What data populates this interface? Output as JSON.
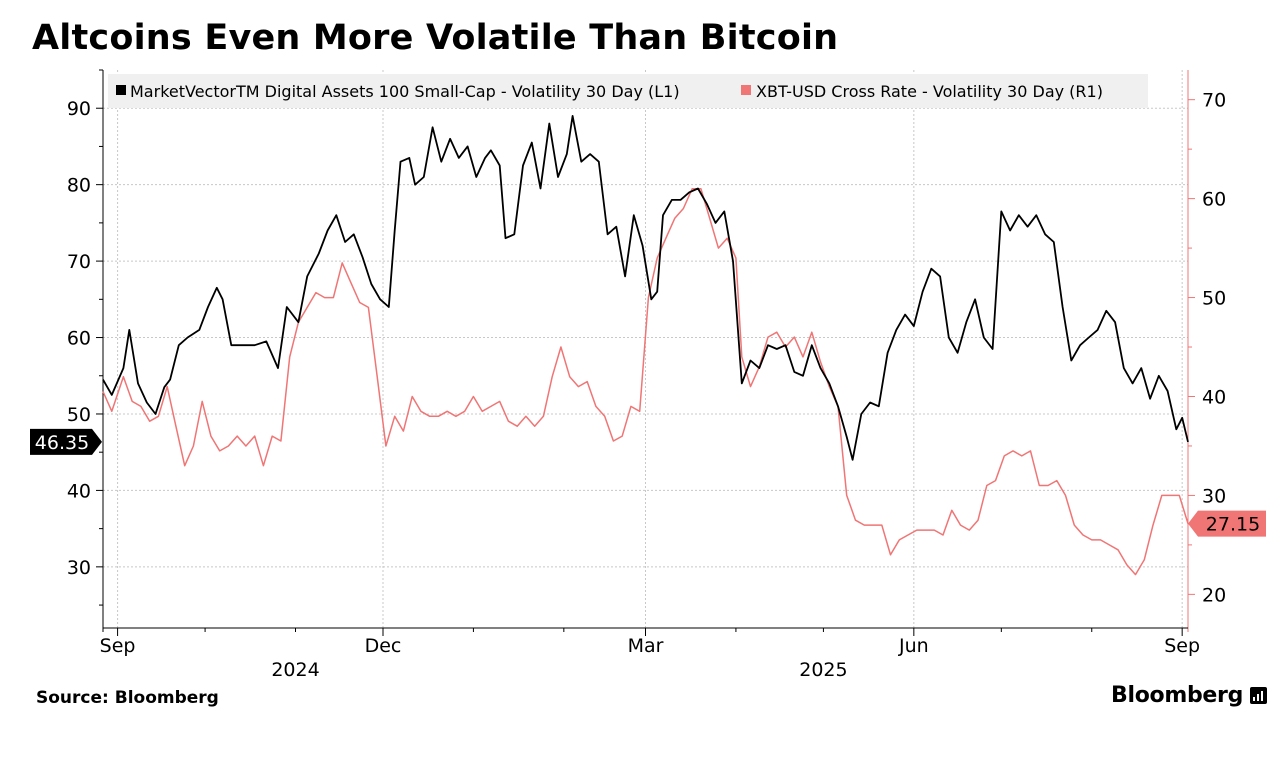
{
  "title": "Altcoins Even More Volatile Than Bitcoin",
  "source": "Source: Bloomberg",
  "brand": "Bloomberg",
  "chart_data": {
    "type": "line",
    "title": "Altcoins Even More Volatile Than Bitcoin",
    "x_ticks": [
      "Sep",
      "Dec",
      "Mar",
      "Jun",
      "Sep"
    ],
    "x_years": [
      "2024",
      "2025"
    ],
    "x_range": [
      "2024-08-27",
      "2025-09-03"
    ],
    "grid": true,
    "legend_position": "top",
    "axes": {
      "left": {
        "ticks": [
          30,
          40,
          50,
          60,
          70,
          80,
          90
        ],
        "range": [
          22,
          95
        ]
      },
      "right": {
        "ticks": [
          20,
          30,
          40,
          50,
          60,
          70
        ],
        "range": [
          16.6,
          73
        ]
      }
    },
    "series": [
      {
        "name": "MarketVectorTM Digital Assets 100 Small-Cap - Volatility 30 Day (L1)",
        "axis": "left",
        "color": "#000000",
        "last_label": "46.35",
        "points": [
          [
            "2024-08-27",
            54.5
          ],
          [
            "2024-08-30",
            52.5
          ],
          [
            "2024-09-03",
            56.0
          ],
          [
            "2024-09-05",
            61.0
          ],
          [
            "2024-09-08",
            54.0
          ],
          [
            "2024-09-11",
            51.5
          ],
          [
            "2024-09-14",
            50.0
          ],
          [
            "2024-09-17",
            53.5
          ],
          [
            "2024-09-19",
            54.5
          ],
          [
            "2024-09-22",
            59.0
          ],
          [
            "2024-09-25",
            60.0
          ],
          [
            "2024-09-29",
            61.0
          ],
          [
            "2024-10-02",
            64.0
          ],
          [
            "2024-10-05",
            66.5
          ],
          [
            "2024-10-07",
            65.0
          ],
          [
            "2024-10-10",
            59.0
          ],
          [
            "2024-10-14",
            59.0
          ],
          [
            "2024-10-18",
            59.0
          ],
          [
            "2024-10-22",
            59.5
          ],
          [
            "2024-10-26",
            56.0
          ],
          [
            "2024-10-29",
            64.0
          ],
          [
            "2024-11-02",
            62.0
          ],
          [
            "2024-11-05",
            68.0
          ],
          [
            "2024-11-09",
            71.0
          ],
          [
            "2024-11-12",
            74.0
          ],
          [
            "2024-11-15",
            76.0
          ],
          [
            "2024-11-18",
            72.5
          ],
          [
            "2024-11-21",
            73.5
          ],
          [
            "2024-11-24",
            70.5
          ],
          [
            "2024-11-27",
            67.0
          ],
          [
            "2024-11-30",
            65.0
          ],
          [
            "2024-12-03",
            64.0
          ],
          [
            "2024-12-05",
            74.0
          ],
          [
            "2024-12-07",
            83.0
          ],
          [
            "2024-12-10",
            83.5
          ],
          [
            "2024-12-12",
            80.0
          ],
          [
            "2024-12-15",
            81.0
          ],
          [
            "2024-12-18",
            87.5
          ],
          [
            "2024-12-21",
            83.0
          ],
          [
            "2024-12-24",
            86.0
          ],
          [
            "2024-12-27",
            83.5
          ],
          [
            "2024-12-30",
            85.0
          ],
          [
            "2025-01-02",
            81.0
          ],
          [
            "2025-01-05",
            83.5
          ],
          [
            "2025-01-07",
            84.5
          ],
          [
            "2025-01-10",
            82.5
          ],
          [
            "2025-01-12",
            73.0
          ],
          [
            "2025-01-15",
            73.5
          ],
          [
            "2025-01-18",
            82.5
          ],
          [
            "2025-01-21",
            85.5
          ],
          [
            "2025-01-24",
            79.5
          ],
          [
            "2025-01-27",
            88.0
          ],
          [
            "2025-01-30",
            81.0
          ],
          [
            "2025-02-02",
            84.0
          ],
          [
            "2025-02-04",
            89.0
          ],
          [
            "2025-02-07",
            83.0
          ],
          [
            "2025-02-10",
            84.0
          ],
          [
            "2025-02-13",
            83.0
          ],
          [
            "2025-02-16",
            73.5
          ],
          [
            "2025-02-19",
            74.5
          ],
          [
            "2025-02-22",
            68.0
          ],
          [
            "2025-02-25",
            76.0
          ],
          [
            "2025-02-28",
            72.0
          ],
          [
            "2025-03-03",
            65.0
          ],
          [
            "2025-03-05",
            66.0
          ],
          [
            "2025-03-07",
            76.0
          ],
          [
            "2025-03-10",
            78.0
          ],
          [
            "2025-03-13",
            78.0
          ],
          [
            "2025-03-16",
            79.0
          ],
          [
            "2025-03-19",
            79.5
          ],
          [
            "2025-03-22",
            77.5
          ],
          [
            "2025-03-25",
            75.0
          ],
          [
            "2025-03-28",
            76.5
          ],
          [
            "2025-03-31",
            70.0
          ],
          [
            "2025-04-03",
            54.0
          ],
          [
            "2025-04-06",
            57.0
          ],
          [
            "2025-04-09",
            56.0
          ],
          [
            "2025-04-12",
            59.0
          ],
          [
            "2025-04-15",
            58.5
          ],
          [
            "2025-04-18",
            59.0
          ],
          [
            "2025-04-21",
            55.5
          ],
          [
            "2025-04-24",
            55.0
          ],
          [
            "2025-04-27",
            59.0
          ],
          [
            "2025-04-30",
            56.0
          ],
          [
            "2025-05-03",
            54.0
          ],
          [
            "2025-05-06",
            51.0
          ],
          [
            "2025-05-09",
            47.0
          ],
          [
            "2025-05-11",
            44.0
          ],
          [
            "2025-05-14",
            50.0
          ],
          [
            "2025-05-17",
            51.5
          ],
          [
            "2025-05-20",
            51.0
          ],
          [
            "2025-05-23",
            58.0
          ],
          [
            "2025-05-26",
            61.0
          ],
          [
            "2025-05-29",
            63.0
          ],
          [
            "2025-06-01",
            61.5
          ],
          [
            "2025-06-04",
            66.0
          ],
          [
            "2025-06-07",
            69.0
          ],
          [
            "2025-06-10",
            68.0
          ],
          [
            "2025-06-13",
            60.0
          ],
          [
            "2025-06-16",
            58.0
          ],
          [
            "2025-06-19",
            62.0
          ],
          [
            "2025-06-22",
            65.0
          ],
          [
            "2025-06-25",
            60.0
          ],
          [
            "2025-06-28",
            58.5
          ],
          [
            "2025-07-01",
            76.5
          ],
          [
            "2025-07-04",
            74.0
          ],
          [
            "2025-07-07",
            76.0
          ],
          [
            "2025-07-10",
            74.5
          ],
          [
            "2025-07-13",
            76.0
          ],
          [
            "2025-07-16",
            73.5
          ],
          [
            "2025-07-19",
            72.5
          ],
          [
            "2025-07-22",
            64.0
          ],
          [
            "2025-07-25",
            57.0
          ],
          [
            "2025-07-28",
            59.0
          ],
          [
            "2025-07-31",
            60.0
          ],
          [
            "2025-08-03",
            61.0
          ],
          [
            "2025-08-06",
            63.5
          ],
          [
            "2025-08-09",
            62.0
          ],
          [
            "2025-08-12",
            56.0
          ],
          [
            "2025-08-15",
            54.0
          ],
          [
            "2025-08-18",
            56.0
          ],
          [
            "2025-08-21",
            52.0
          ],
          [
            "2025-08-24",
            55.0
          ],
          [
            "2025-08-27",
            53.0
          ],
          [
            "2025-08-30",
            48.0
          ],
          [
            "2025-09-01",
            49.5
          ],
          [
            "2025-09-03",
            46.35
          ]
        ]
      },
      {
        "name": "XBT-USD Cross Rate - Volatility 30 Day (R1)",
        "axis": "right",
        "color": "#f07575",
        "last_label": "27.15",
        "points": [
          [
            "2024-08-27",
            40.5
          ],
          [
            "2024-08-30",
            38.5
          ],
          [
            "2024-09-03",
            42.0
          ],
          [
            "2024-09-06",
            39.5
          ],
          [
            "2024-09-09",
            39.0
          ],
          [
            "2024-09-12",
            37.5
          ],
          [
            "2024-09-15",
            38.0
          ],
          [
            "2024-09-18",
            41.0
          ],
          [
            "2024-09-21",
            37.0
          ],
          [
            "2024-09-24",
            33.0
          ],
          [
            "2024-09-27",
            35.0
          ],
          [
            "2024-09-30",
            39.5
          ],
          [
            "2024-10-03",
            36.0
          ],
          [
            "2024-10-06",
            34.5
          ],
          [
            "2024-10-09",
            35.0
          ],
          [
            "2024-10-12",
            36.0
          ],
          [
            "2024-10-15",
            35.0
          ],
          [
            "2024-10-18",
            36.0
          ],
          [
            "2024-10-21",
            33.0
          ],
          [
            "2024-10-24",
            36.0
          ],
          [
            "2024-10-27",
            35.5
          ],
          [
            "2024-10-30",
            44.0
          ],
          [
            "2024-11-02",
            47.5
          ],
          [
            "2024-11-05",
            49.0
          ],
          [
            "2024-11-08",
            50.5
          ],
          [
            "2024-11-11",
            50.0
          ],
          [
            "2024-11-14",
            50.0
          ],
          [
            "2024-11-17",
            53.5
          ],
          [
            "2024-11-20",
            51.5
          ],
          [
            "2024-11-23",
            49.5
          ],
          [
            "2024-11-26",
            49.0
          ],
          [
            "2024-11-29",
            42.0
          ],
          [
            "2024-12-02",
            35.0
          ],
          [
            "2024-12-05",
            38.0
          ],
          [
            "2024-12-08",
            36.5
          ],
          [
            "2024-12-11",
            40.0
          ],
          [
            "2024-12-14",
            38.5
          ],
          [
            "2024-12-17",
            38.0
          ],
          [
            "2024-12-20",
            38.0
          ],
          [
            "2024-12-23",
            38.5
          ],
          [
            "2024-12-26",
            38.0
          ],
          [
            "2024-12-29",
            38.5
          ],
          [
            "2025-01-01",
            40.0
          ],
          [
            "2025-01-04",
            38.5
          ],
          [
            "2025-01-07",
            39.0
          ],
          [
            "2025-01-10",
            39.5
          ],
          [
            "2025-01-13",
            37.5
          ],
          [
            "2025-01-16",
            37.0
          ],
          [
            "2025-01-19",
            38.0
          ],
          [
            "2025-01-22",
            37.0
          ],
          [
            "2025-01-25",
            38.0
          ],
          [
            "2025-01-28",
            42.0
          ],
          [
            "2025-01-31",
            45.0
          ],
          [
            "2025-02-03",
            42.0
          ],
          [
            "2025-02-06",
            41.0
          ],
          [
            "2025-02-09",
            41.5
          ],
          [
            "2025-02-12",
            39.0
          ],
          [
            "2025-02-15",
            38.0
          ],
          [
            "2025-02-18",
            35.5
          ],
          [
            "2025-02-21",
            36.0
          ],
          [
            "2025-02-24",
            39.0
          ],
          [
            "2025-02-27",
            38.5
          ],
          [
            "2025-03-02",
            50.0
          ],
          [
            "2025-03-05",
            54.0
          ],
          [
            "2025-03-08",
            56.0
          ],
          [
            "2025-03-11",
            58.0
          ],
          [
            "2025-03-14",
            59.0
          ],
          [
            "2025-03-17",
            61.0
          ],
          [
            "2025-03-20",
            61.0
          ],
          [
            "2025-03-23",
            58.0
          ],
          [
            "2025-03-26",
            55.0
          ],
          [
            "2025-03-29",
            56.0
          ],
          [
            "2025-04-01",
            54.0
          ],
          [
            "2025-04-03",
            44.0
          ],
          [
            "2025-04-06",
            41.0
          ],
          [
            "2025-04-09",
            43.0
          ],
          [
            "2025-04-12",
            46.0
          ],
          [
            "2025-04-15",
            46.5
          ],
          [
            "2025-04-18",
            45.0
          ],
          [
            "2025-04-21",
            46.0
          ],
          [
            "2025-04-24",
            44.0
          ],
          [
            "2025-04-27",
            46.5
          ],
          [
            "2025-04-30",
            43.5
          ],
          [
            "2025-05-03",
            41.0
          ],
          [
            "2025-05-06",
            39.0
          ],
          [
            "2025-05-09",
            30.0
          ],
          [
            "2025-05-12",
            27.5
          ],
          [
            "2025-05-15",
            27.0
          ],
          [
            "2025-05-18",
            27.0
          ],
          [
            "2025-05-21",
            27.0
          ],
          [
            "2025-05-24",
            24.0
          ],
          [
            "2025-05-27",
            25.5
          ],
          [
            "2025-05-30",
            26.0
          ],
          [
            "2025-06-02",
            26.5
          ],
          [
            "2025-06-05",
            26.5
          ],
          [
            "2025-06-08",
            26.5
          ],
          [
            "2025-06-11",
            26.0
          ],
          [
            "2025-06-14",
            28.5
          ],
          [
            "2025-06-17",
            27.0
          ],
          [
            "2025-06-20",
            26.5
          ],
          [
            "2025-06-23",
            27.5
          ],
          [
            "2025-06-26",
            31.0
          ],
          [
            "2025-06-29",
            31.5
          ],
          [
            "2025-07-02",
            34.0
          ],
          [
            "2025-07-05",
            34.5
          ],
          [
            "2025-07-08",
            34.0
          ],
          [
            "2025-07-11",
            34.5
          ],
          [
            "2025-07-14",
            31.0
          ],
          [
            "2025-07-17",
            31.0
          ],
          [
            "2025-07-20",
            31.5
          ],
          [
            "2025-07-23",
            30.0
          ],
          [
            "2025-07-26",
            27.0
          ],
          [
            "2025-07-29",
            26.0
          ],
          [
            "2025-08-01",
            25.5
          ],
          [
            "2025-08-04",
            25.5
          ],
          [
            "2025-08-07",
            25.0
          ],
          [
            "2025-08-10",
            24.5
          ],
          [
            "2025-08-13",
            23.0
          ],
          [
            "2025-08-16",
            22.0
          ],
          [
            "2025-08-19",
            23.5
          ],
          [
            "2025-08-22",
            27.0
          ],
          [
            "2025-08-25",
            30.0
          ],
          [
            "2025-08-28",
            30.0
          ],
          [
            "2025-08-31",
            30.0
          ],
          [
            "2025-09-03",
            27.15
          ]
        ]
      }
    ]
  }
}
